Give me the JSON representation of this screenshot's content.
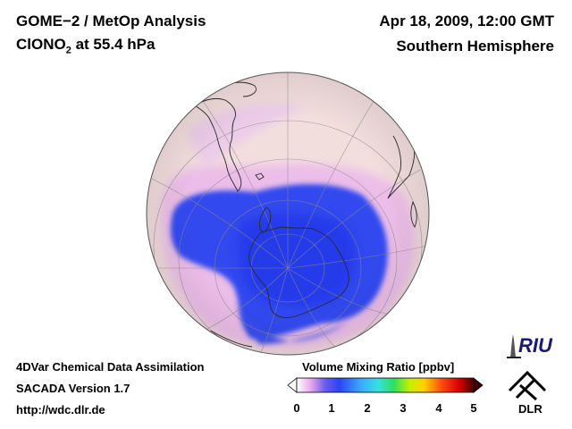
{
  "header": {
    "title": "GOME−2 / MetOp Analysis",
    "species_main": "ClONO",
    "species_sub": "2",
    "species_rest": " at 55.4 hPa",
    "date": "Apr 18, 2009, 12:00 GMT",
    "region": "Southern Hemisphere"
  },
  "footer": {
    "line1": "4DVar Chemical Data Assimilation",
    "line2": "SACADA Version 1.7",
    "url": "http://wdc.dlr.de"
  },
  "colorbar": {
    "label": "Volume Mixing Ratio [ppbv]",
    "ticks": [
      "0",
      "1",
      "2",
      "3",
      "4",
      "5"
    ],
    "range": [
      0,
      5
    ],
    "colors": [
      "#ffffff",
      "#e6a0e6",
      "#3366ff",
      "#33ccff",
      "#33ff66",
      "#ccff00",
      "#ffcc00",
      "#ff3300",
      "#cc0000",
      "#4d0000"
    ]
  },
  "logos": {
    "riu": "RIU",
    "dlr": "DLR"
  },
  "colors": {
    "background_field": "#f2dcdc",
    "low_field": "#ecb4ec",
    "depleted_field": "#2f46f0"
  }
}
